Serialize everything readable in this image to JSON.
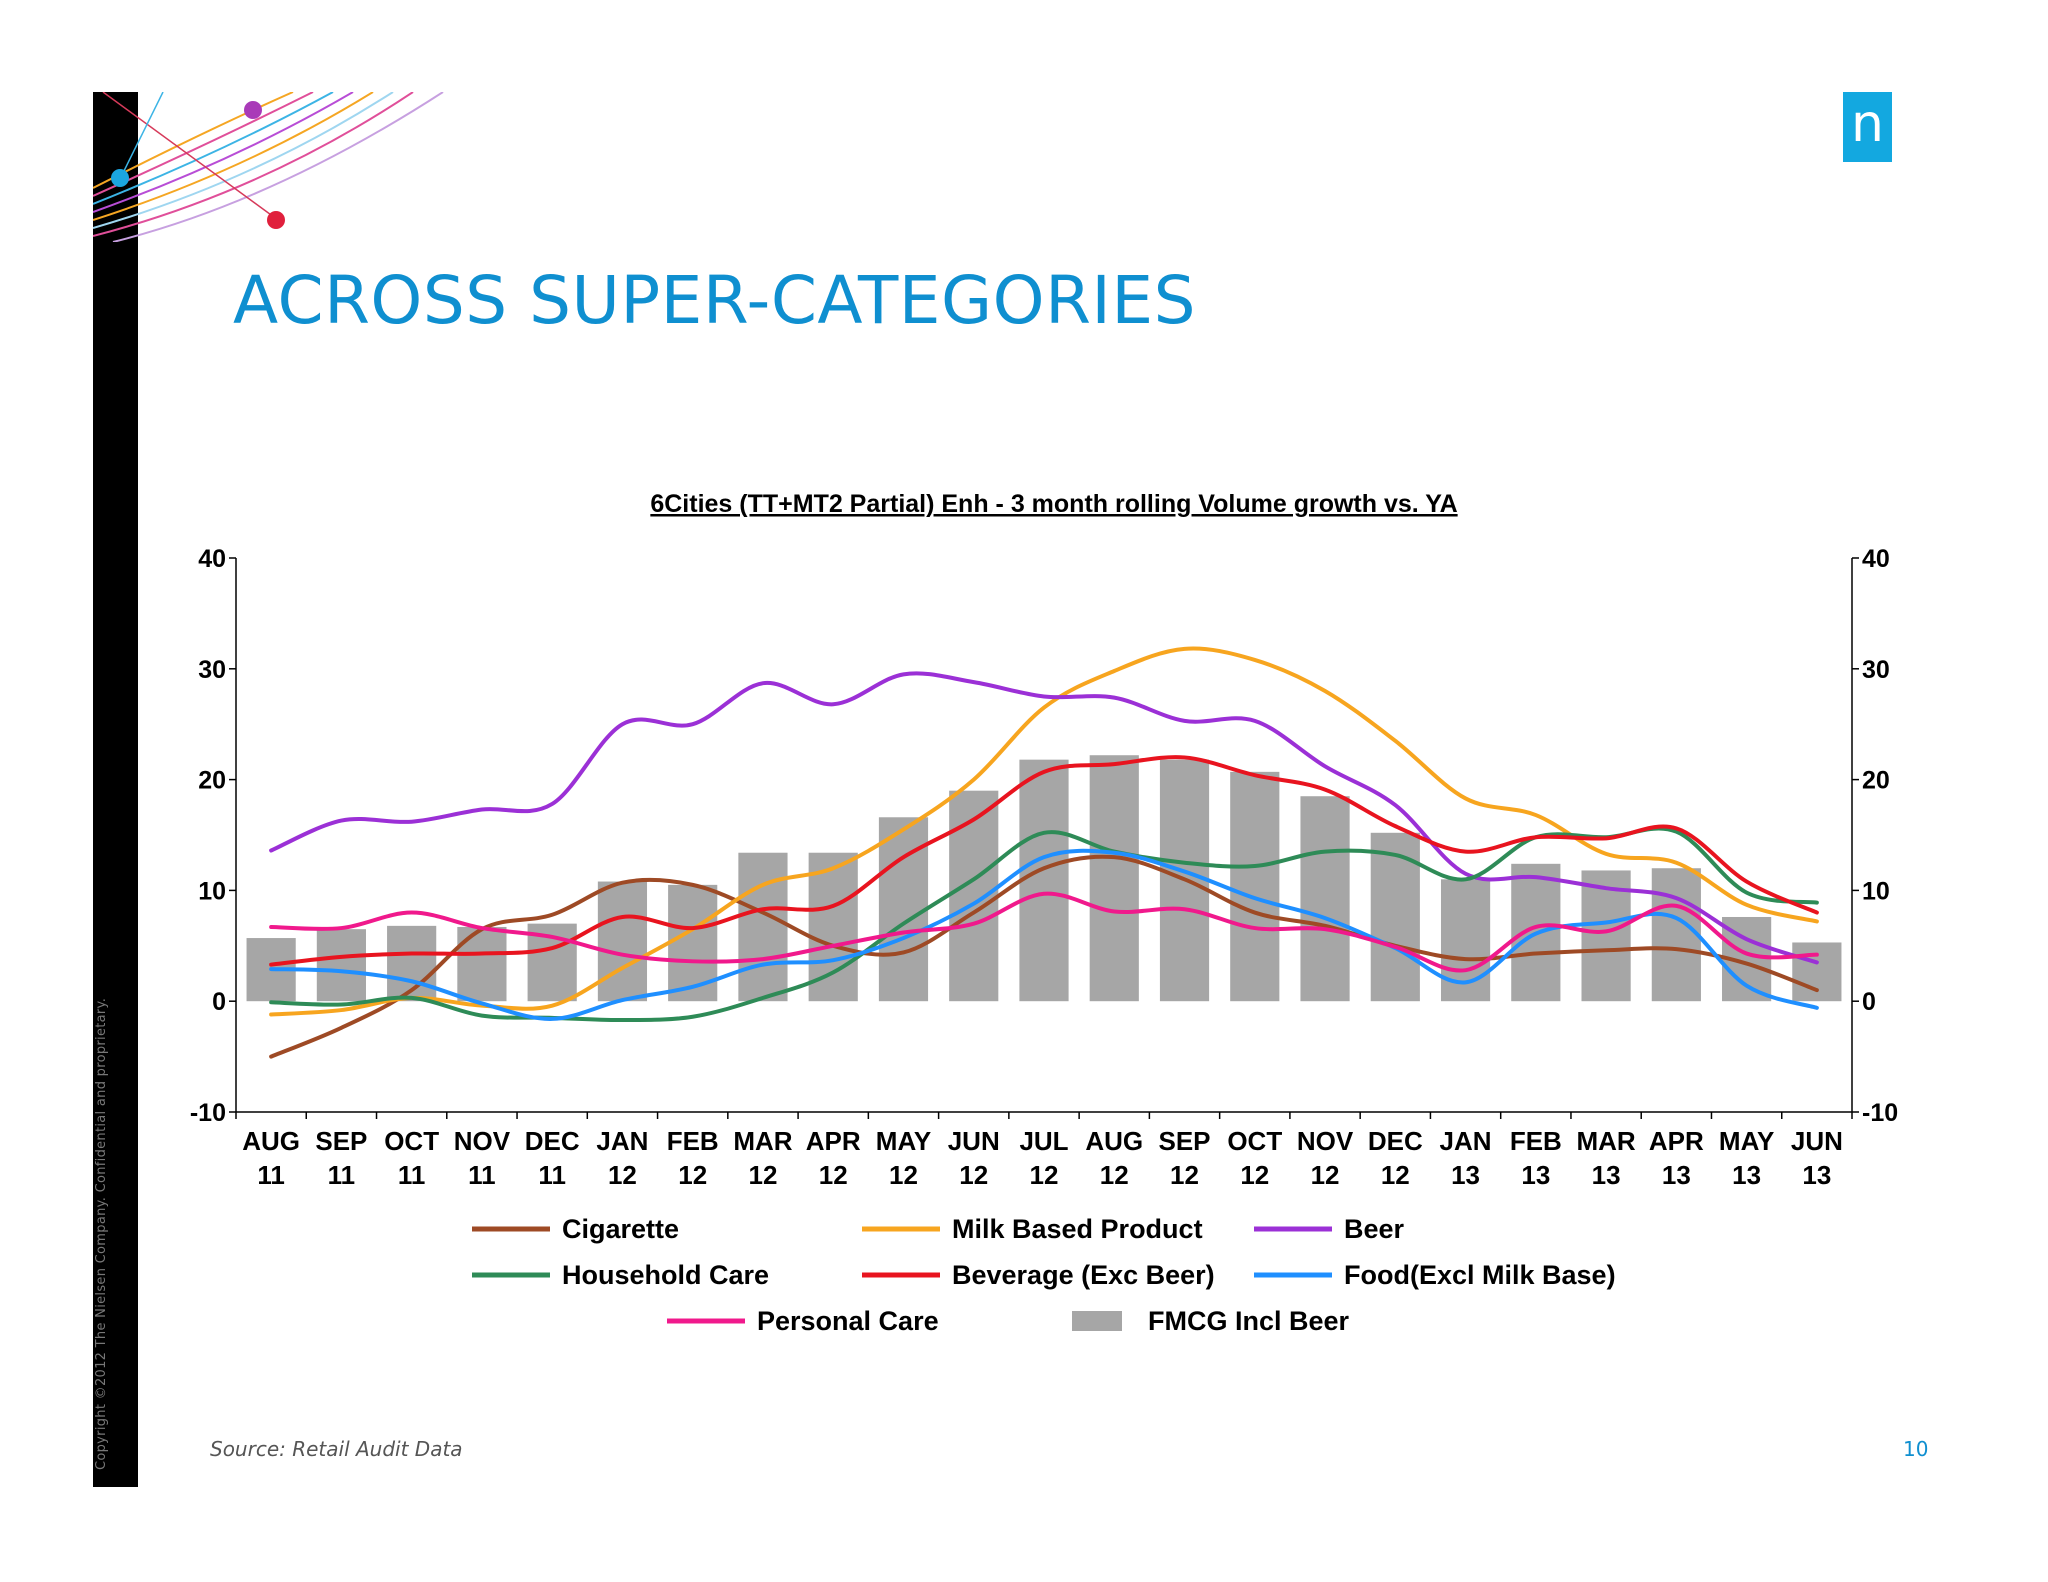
{
  "page": {
    "title": "ACROSS SUPER-CATEGORIES",
    "copyright": "Copyright ©2012 The Nielsen Company. Confidential and proprietary.",
    "logo_text": "n",
    "source": "Source: Retail Audit Data",
    "page_number": "10"
  },
  "colors": {
    "title": "#0f8fd0",
    "logo": "#13a8e0",
    "bars": "#a6a6a6"
  },
  "icons": {
    "logo": "nielsen-logo-icon",
    "decoration": "decorative-arcs-icon"
  },
  "chart_data": {
    "type": "line",
    "title": "6Cities (TT+MT2 Partial) Enh - 3 month rolling Volume growth vs. YA",
    "xlabel": "",
    "ylabel": "",
    "ylim": [
      -10,
      40
    ],
    "yticks": [
      -10,
      0,
      10,
      20,
      30,
      40
    ],
    "y2ticks": [
      -10,
      0,
      10,
      20,
      30,
      40
    ],
    "grid": false,
    "legend_position": "bottom",
    "categories": [
      [
        "AUG",
        "11"
      ],
      [
        "SEP",
        "11"
      ],
      [
        "OCT",
        "11"
      ],
      [
        "NOV",
        "11"
      ],
      [
        "DEC",
        "11"
      ],
      [
        "JAN",
        "12"
      ],
      [
        "FEB",
        "12"
      ],
      [
        "MAR",
        "12"
      ],
      [
        "APR",
        "12"
      ],
      [
        "MAY",
        "12"
      ],
      [
        "JUN",
        "12"
      ],
      [
        "JUL",
        "12"
      ],
      [
        "AUG",
        "12"
      ],
      [
        "SEP",
        "12"
      ],
      [
        "OCT",
        "12"
      ],
      [
        "NOV",
        "12"
      ],
      [
        "DEC",
        "12"
      ],
      [
        "JAN",
        "13"
      ],
      [
        "FEB",
        "13"
      ],
      [
        "MAR",
        "13"
      ],
      [
        "APR",
        "13"
      ],
      [
        "MAY",
        "13"
      ],
      [
        "JUN",
        "13"
      ]
    ],
    "bar_series": {
      "name": "FMCG Incl Beer",
      "color": "#a6a6a6",
      "values": [
        5.7,
        6.5,
        6.8,
        6.7,
        7.0,
        10.8,
        10.5,
        13.4,
        13.4,
        16.6,
        19.0,
        21.8,
        22.2,
        21.8,
        20.7,
        18.5,
        15.2,
        11.0,
        12.4,
        11.8,
        12.0,
        7.6,
        5.3
      ]
    },
    "series": [
      {
        "name": "Cigarette",
        "color": "#9e4a25",
        "values": [
          -5.0,
          -2.4,
          1.0,
          6.5,
          7.8,
          10.7,
          10.5,
          8.0,
          5.0,
          4.4,
          8.0,
          12.0,
          13.0,
          11.0,
          8.0,
          6.8,
          5.0,
          3.8,
          4.3,
          4.6,
          4.7,
          3.4,
          1.0
        ]
      },
      {
        "name": "Milk Based Product",
        "color": "#f7a51f",
        "values": [
          -1.2,
          -0.8,
          0.3,
          -0.4,
          -0.4,
          3.0,
          6.5,
          10.5,
          12.0,
          15.5,
          20.0,
          26.5,
          29.8,
          31.8,
          30.8,
          28.0,
          23.5,
          18.3,
          16.8,
          13.3,
          12.5,
          8.7,
          7.2
        ]
      },
      {
        "name": "Beer",
        "color": "#9b30d6",
        "values": [
          13.6,
          16.3,
          16.2,
          17.3,
          17.8,
          25.0,
          25.0,
          28.7,
          26.8,
          29.5,
          28.8,
          27.5,
          27.4,
          25.3,
          25.3,
          21.2,
          17.7,
          11.5,
          11.2,
          10.2,
          9.3,
          5.6,
          3.5
        ]
      },
      {
        "name": "Household Care",
        "color": "#2e8b57",
        "values": [
          -0.1,
          -0.3,
          0.3,
          -1.3,
          -1.5,
          -1.7,
          -1.4,
          0.3,
          2.6,
          7.0,
          11.0,
          15.2,
          13.5,
          12.5,
          12.2,
          13.5,
          13.2,
          11.0,
          14.8,
          14.8,
          15.3,
          9.8,
          8.9
        ]
      },
      {
        "name": "Beverage (Exc Beer)",
        "color": "#e8141f",
        "values": [
          3.3,
          4.0,
          4.3,
          4.3,
          4.8,
          7.6,
          6.6,
          8.3,
          8.6,
          13.0,
          16.4,
          20.7,
          21.4,
          22.0,
          20.4,
          19.1,
          15.8,
          13.5,
          14.8,
          14.7,
          15.6,
          10.8,
          8.0
        ]
      },
      {
        "name": "Food(Excl Milk Base)",
        "color": "#1f8fff",
        "values": [
          2.9,
          2.7,
          1.8,
          -0.2,
          -1.6,
          0.1,
          1.3,
          3.3,
          3.7,
          5.7,
          8.8,
          13.0,
          13.4,
          11.7,
          9.3,
          7.5,
          4.8,
          1.7,
          6.1,
          7.1,
          7.5,
          1.4,
          -0.6
        ]
      },
      {
        "name": "Personal Care",
        "color": "#f0198c",
        "values": [
          6.7,
          6.6,
          8.0,
          6.6,
          5.8,
          4.2,
          3.6,
          3.8,
          5.0,
          6.2,
          7.0,
          9.7,
          8.1,
          8.3,
          6.6,
          6.5,
          4.9,
          2.8,
          6.7,
          6.3,
          8.6,
          4.3,
          4.2
        ]
      }
    ],
    "legend": [
      {
        "name": "Cigarette",
        "kind": "line"
      },
      {
        "name": "Milk Based Product",
        "kind": "line"
      },
      {
        "name": "Beer",
        "kind": "line"
      },
      {
        "name": "Household Care",
        "kind": "line"
      },
      {
        "name": "Beverage (Exc Beer)",
        "kind": "line"
      },
      {
        "name": "Food(Excl Milk Base)",
        "kind": "line"
      },
      {
        "name": "Personal Care",
        "kind": "line"
      },
      {
        "name": "FMCG Incl Beer",
        "kind": "bar"
      }
    ]
  }
}
